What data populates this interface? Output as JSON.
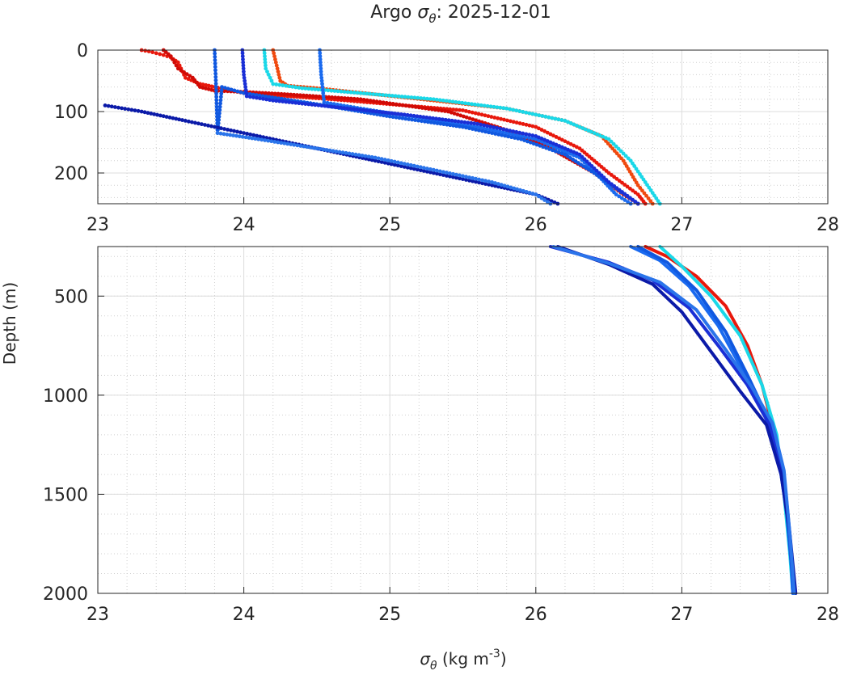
{
  "title_prefix": "Argo ",
  "title_symbol": "σ",
  "title_subscript": "θ",
  "title_suffix": ": 2025-12-01",
  "ylabel": "Depth (m)",
  "xlabel_symbol": "σ",
  "xlabel_subscript": "θ",
  "xlabel_unit": " (kg m",
  "xlabel_exponent": "-3",
  "xlabel_close": ")",
  "chart_data": [
    {
      "type": "scatter",
      "panel": "upper",
      "xlim": [
        23,
        28
      ],
      "ylim": [
        0,
        250
      ],
      "y_reversed": true,
      "xticks": [
        "23",
        "24",
        "25",
        "26",
        "27",
        "28"
      ],
      "yticks": [
        "0",
        "100",
        "200"
      ],
      "grid": true,
      "series": [
        {
          "color": "#e8180c",
          "x": [
            23.3,
            23.35,
            23.4,
            23.45,
            23.5,
            23.55,
            23.6,
            23.7,
            23.8,
            24.0,
            24.3,
            24.6,
            25.0,
            25.5,
            26.0,
            26.3,
            26.5,
            26.7,
            26.75
          ],
          "y": [
            0,
            2,
            5,
            8,
            12,
            20,
            45,
            55,
            60,
            70,
            75,
            80,
            88,
            98,
            125,
            160,
            200,
            235,
            250
          ]
        },
        {
          "color": "#d10a05",
          "x": [
            23.45,
            23.5,
            23.55,
            23.65,
            23.7,
            23.8,
            24.0,
            24.3,
            24.8,
            25.4,
            25.8,
            26.1,
            26.4,
            26.6,
            26.7
          ],
          "y": [
            0,
            10,
            30,
            45,
            60,
            66,
            68,
            72,
            80,
            100,
            130,
            160,
            200,
            235,
            250
          ]
        },
        {
          "color": "#f04a10",
          "x": [
            24.2,
            24.22,
            24.25,
            24.3,
            24.5,
            24.9,
            25.3,
            25.8,
            26.2,
            26.45,
            26.6,
            26.7,
            26.8
          ],
          "y": [
            0,
            20,
            50,
            58,
            62,
            72,
            82,
            95,
            115,
            140,
            180,
            220,
            250
          ]
        },
        {
          "color": "#1ad8e8",
          "x": [
            24.14,
            24.15,
            24.2,
            24.4,
            24.8,
            25.3,
            25.8,
            26.2,
            26.5,
            26.65,
            26.75,
            26.85
          ],
          "y": [
            0,
            30,
            55,
            62,
            70,
            80,
            95,
            115,
            145,
            180,
            215,
            250
          ]
        },
        {
          "color": "#1a6aef",
          "x": [
            24.52,
            24.53,
            24.55,
            24.8,
            25.2,
            25.6,
            26.0,
            26.3,
            26.45,
            26.55,
            26.65
          ],
          "y": [
            0,
            40,
            85,
            95,
            110,
            125,
            145,
            175,
            210,
            235,
            250
          ]
        },
        {
          "color": "#1058e0",
          "x": [
            23.8,
            23.81,
            23.82,
            23.85,
            24.0,
            24.5,
            25.0,
            25.5,
            25.9,
            26.2,
            26.4,
            26.55,
            26.7
          ],
          "y": [
            0,
            60,
            135,
            60,
            70,
            88,
            108,
            125,
            145,
            170,
            200,
            225,
            250
          ]
        },
        {
          "color": "#1a2fd6",
          "x": [
            23.99,
            24.0,
            24.02,
            24.2,
            24.6,
            25.1,
            25.6,
            26.0,
            26.3,
            26.5,
            26.7
          ],
          "y": [
            0,
            40,
            75,
            82,
            92,
            105,
            120,
            140,
            170,
            215,
            250
          ]
        },
        {
          "color": "#0b1aa8",
          "x": [
            23.05,
            23.3,
            23.6,
            24.0,
            24.4,
            24.9,
            25.3,
            25.7,
            26.0,
            26.15
          ],
          "y": [
            90,
            100,
            115,
            135,
            155,
            180,
            200,
            220,
            235,
            250
          ]
        },
        {
          "color": "#2a74ea",
          "x": [
            23.82,
            24.1,
            24.5,
            24.9,
            25.3,
            25.7,
            26.0,
            26.1
          ],
          "y": [
            135,
            145,
            160,
            175,
            195,
            215,
            235,
            250
          ]
        }
      ]
    },
    {
      "type": "line",
      "panel": "lower",
      "xlim": [
        23,
        28
      ],
      "ylim": [
        250,
        2000
      ],
      "y_reversed": true,
      "xticks": [
        "23",
        "24",
        "25",
        "26",
        "27",
        "28"
      ],
      "yticks": [
        "500",
        "1000",
        "1500",
        "2000"
      ],
      "grid": true,
      "series": [
        {
          "color": "#e8180c",
          "x": [
            26.75,
            26.9,
            27.1,
            27.3,
            27.45,
            27.55,
            27.62,
            27.68,
            27.72,
            27.75,
            27.76
          ],
          "y": [
            250,
            300,
            400,
            550,
            750,
            950,
            1150,
            1350,
            1600,
            1850,
            2000
          ]
        },
        {
          "color": "#1ad8e8",
          "x": [
            26.85,
            27.0,
            27.2,
            27.4,
            27.55,
            27.65,
            27.7,
            27.74,
            27.76
          ],
          "y": [
            250,
            350,
            500,
            700,
            950,
            1200,
            1500,
            1800,
            2000
          ]
        },
        {
          "color": "#1a6aef",
          "x": [
            26.65,
            26.85,
            27.05,
            27.25,
            27.42,
            27.56,
            27.66,
            27.72,
            27.75,
            27.76
          ],
          "y": [
            250,
            320,
            450,
            650,
            880,
            1080,
            1300,
            1600,
            1850,
            2000
          ]
        },
        {
          "color": "#1058e0",
          "x": [
            26.7,
            26.9,
            27.1,
            27.3,
            27.45,
            27.58,
            27.67,
            27.72,
            27.75,
            27.77
          ],
          "y": [
            250,
            330,
            470,
            680,
            900,
            1100,
            1300,
            1600,
            1850,
            2000
          ]
        },
        {
          "color": "#1a2fd6",
          "x": [
            26.1,
            26.5,
            26.8,
            27.05,
            27.25,
            27.45,
            27.6,
            27.7,
            27.74,
            27.77
          ],
          "y": [
            250,
            330,
            420,
            560,
            750,
            950,
            1150,
            1400,
            1700,
            2000
          ]
        },
        {
          "color": "#0b1aa8",
          "x": [
            26.15,
            26.5,
            26.8,
            27.0,
            27.2,
            27.4,
            27.58,
            27.68,
            27.74,
            27.78
          ],
          "y": [
            250,
            340,
            440,
            580,
            780,
            980,
            1150,
            1400,
            1700,
            2000
          ]
        },
        {
          "color": "#2a74ea",
          "x": [
            26.12,
            26.5,
            26.85,
            27.1,
            27.3,
            27.48,
            27.62,
            27.7,
            27.74,
            27.77
          ],
          "y": [
            250,
            335,
            430,
            570,
            770,
            960,
            1140,
            1380,
            1700,
            2000
          ]
        }
      ]
    }
  ]
}
